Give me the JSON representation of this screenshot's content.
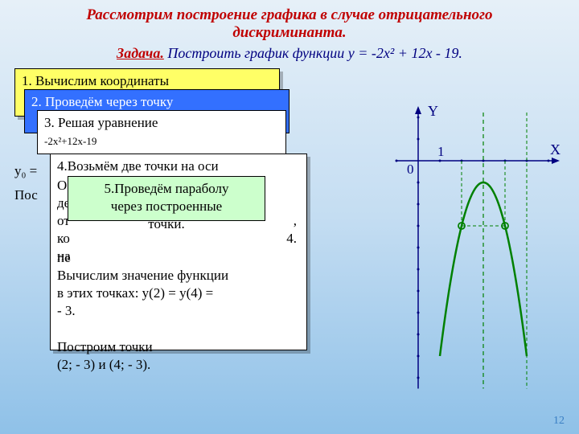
{
  "title": {
    "line1": "Рассмотрим построение графика в случае отрицательного",
    "line2": "дискриминанта."
  },
  "task": {
    "label": "Задача.",
    "text": " Построить график функции y = -2x² + 12x - 19."
  },
  "box1": "1. Вычислим координаты",
  "box2": "2. Проведём через точку",
  "box3": {
    "l1": "3. Решая уравнение",
    "l2": "-2x²+12x-19"
  },
  "fragA": "y₀ =",
  "fragB": "Пос",
  "box4": {
    "l1": "4.Возьмём две точки на оси",
    "frag_left1": "О",
    "frag_left2": "де",
    "frag_left3": "от",
    "frag_left31": "ко",
    "frag_left4": "на",
    "frag_left5": "пе",
    "right_num": "4.",
    "l6": "Вычислим значение функции",
    "l7": "в этих точках:   y(2) = y(4) =",
    "l8": "- 3.",
    "l10": "Построим точки",
    "l11": "(2; - 3) и (4; - 3)."
  },
  "box5": {
    "l1": "5.Проведём параболу",
    "l2": "через построенные",
    "l3": "точки."
  },
  "chart": {
    "x_axis_y": 115,
    "y_axis_x": 100,
    "x_range": [
      -1,
      6
    ],
    "y_range": [
      -10.5,
      2
    ],
    "unit_x": 27,
    "unit_y": 27,
    "axis_color": "#000080",
    "grid_dots_color": "#000080",
    "parabola_color": "#008000",
    "parabola_width": 2.5,
    "sym_axis_x_value": 3,
    "sym_axis_color": "#008000",
    "aux_lines_color": "#008000",
    "vertex": [
      3,
      -1
    ],
    "marked_points": [
      [
        2,
        -3
      ],
      [
        4,
        -3
      ]
    ],
    "pass_points": [
      [
        1,
        -9
      ],
      [
        2,
        -3
      ],
      [
        3,
        -1
      ],
      [
        4,
        -3
      ],
      [
        5,
        -9
      ]
    ],
    "labels": {
      "X": "X",
      "Y": "Y",
      "one": "1",
      "zero": "0"
    },
    "label_color": "#000080",
    "bg": "transparent"
  },
  "pagenum": "12"
}
